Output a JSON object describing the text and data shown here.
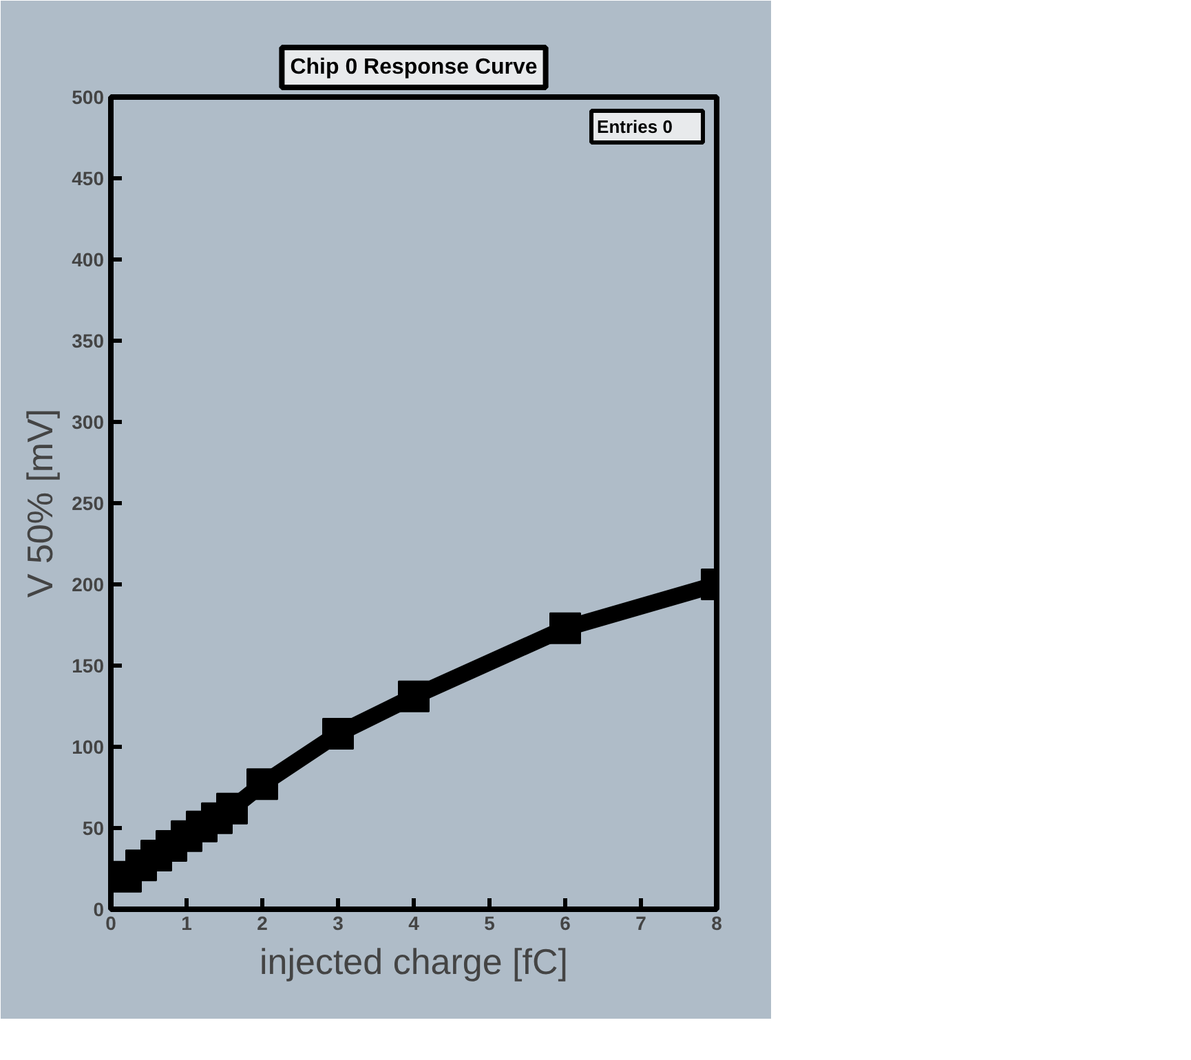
{
  "chart_data": {
    "type": "line",
    "title": "Chip 0 Response Curve",
    "xlabel": "injected charge [fC]",
    "ylabel": "V 50% [mV]",
    "annotations": [
      "Entries      0"
    ],
    "x": [
      0.2,
      0.4,
      0.6,
      0.8,
      1.0,
      1.2,
      1.4,
      1.6,
      2,
      3,
      4,
      6,
      8
    ],
    "series": [
      {
        "color": "#000000",
        "values": [
          20,
          27,
          33,
          39,
          45,
          51,
          56,
          62,
          77,
          108,
          131,
          173,
          200
        ]
      }
    ],
    "xlim": [
      0,
      8
    ],
    "ylim": [
      0,
      500
    ],
    "xticks": [
      0,
      1,
      2,
      3,
      4,
      5,
      6,
      7,
      8
    ],
    "yticks": [
      0,
      50,
      100,
      150,
      200,
      250,
      300,
      350,
      400,
      450,
      500
    ],
    "grid": false,
    "marker": "square",
    "line_style": "solid"
  }
}
